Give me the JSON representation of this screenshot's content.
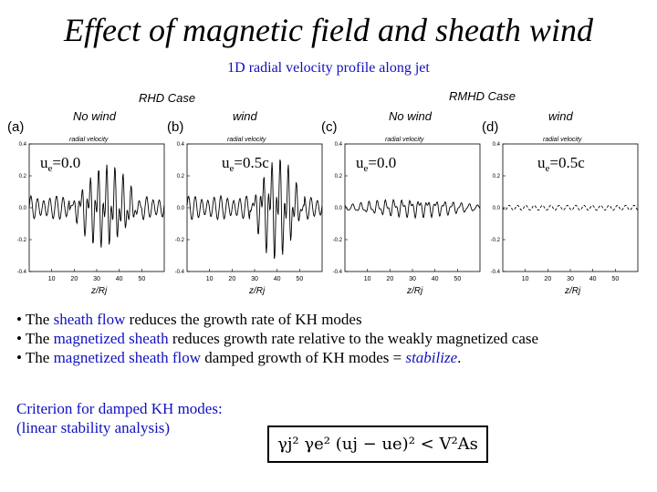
{
  "title": "Effect of magnetic field and sheath wind",
  "subtitle": "1D radial velocity profile along jet",
  "figure": {
    "case_labels": [
      "RHD Case",
      "RMHD Case"
    ],
    "panels": [
      {
        "letter": "(a)",
        "wind": "No wind",
        "ue": "ue=0.0",
        "ue_main": "u",
        "ue_sub": "e",
        "ue_val": "=0.0"
      },
      {
        "letter": "(b)",
        "wind": "wind",
        "ue": "ue=0.5c",
        "ue_main": "u",
        "ue_sub": "e",
        "ue_val": "=0.5c"
      },
      {
        "letter": "(c)",
        "wind": "No wind",
        "ue": "ue=0.0",
        "ue_main": "u",
        "ue_sub": "e",
        "ue_val": "=0.0"
      },
      {
        "letter": "(d)",
        "wind": "wind",
        "ue": "ue=0.5c",
        "ue_main": "u",
        "ue_sub": "e",
        "ue_val": "=0.5c"
      }
    ],
    "panel_heading": "radial velocity",
    "xlabel": "z/Rj",
    "y_ticks": [
      "0.4",
      "0.2",
      "0.0",
      "-0.2",
      "-0.4"
    ],
    "x_ticks": [
      "10",
      "20",
      "30",
      "40",
      "50"
    ]
  },
  "chart_data": {
    "type": "line",
    "title": "1D radial velocity profile along jet",
    "xlabel": "z/Rj",
    "ylabel": "radial velocity",
    "xlim": [
      0,
      60
    ],
    "ylim": [
      -0.4,
      0.4
    ],
    "panels": [
      {
        "label": "(a) RHD Case, No wind, ue=0.0",
        "amplitude": 0.28,
        "active_range": [
          18,
          50
        ]
      },
      {
        "label": "(b) RHD Case, wind, ue=0.5c",
        "amplitude": 0.35,
        "active_range": [
          28,
          52
        ]
      },
      {
        "label": "(c) RMHD Case, No wind, ue=0.0",
        "amplitude": 0.05,
        "active_range": [
          0,
          60
        ]
      },
      {
        "label": "(d) RMHD Case, wind, ue=0.5c",
        "amplitude": 0.0,
        "active_range": [
          0,
          60
        ]
      }
    ]
  },
  "bullets": [
    {
      "prefix": "• The ",
      "highlight": "sheath flow",
      "suffix": " reduces the growth rate of KH modes"
    },
    {
      "prefix": "• The ",
      "highlight": "magnetized sheath",
      "suffix": " reduces growth rate relative to the weakly magnetized case"
    },
    {
      "prefix": "• The ",
      "highlight": "magnetized sheath flow",
      "suffix": " damped growth of KH modes = ",
      "emph": "stabilize",
      "end": "."
    }
  ],
  "criterion": {
    "line1": "Criterion for damped KH modes:",
    "line2": "(linear stability analysis)"
  },
  "formula": "γj² γe² (uj − ue)² < V²As"
}
